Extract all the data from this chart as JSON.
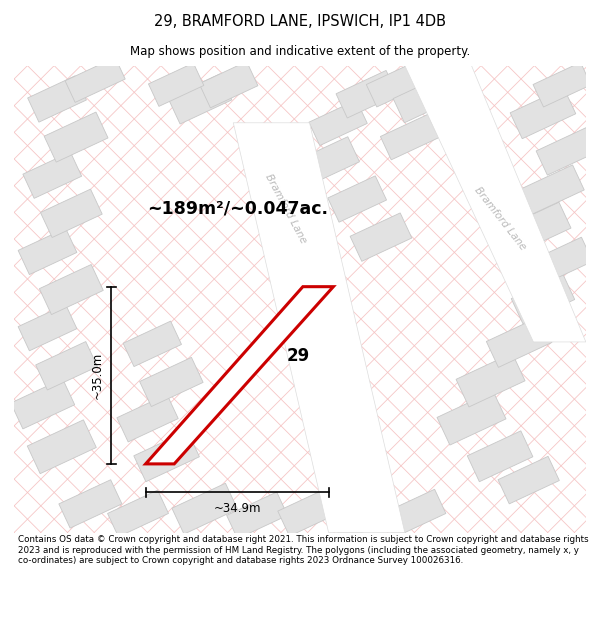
{
  "title": "29, BRAMFORD LANE, IPSWICH, IP1 4DB",
  "subtitle": "Map shows position and indicative extent of the property.",
  "footer": "Contains OS data © Crown copyright and database right 2021. This information is subject to Crown copyright and database rights 2023 and is reproduced with the permission of HM Land Registry. The polygons (including the associated geometry, namely x, y co-ordinates) are subject to Crown copyright and database rights 2023 Ordnance Survey 100026316.",
  "area_label": "~189m²/~0.047ac.",
  "plot_number": "29",
  "dim_height": "~35.0m",
  "dim_width": "~34.9m",
  "bg_color": "#ffffff",
  "map_bg": "#f7f7f7",
  "hatch_color": "#f5c0c0",
  "block_fill": "#e2e2e2",
  "block_edge": "#c8c8c8",
  "road_fill": "#ffffff",
  "road_label_color": "#bbbbbb",
  "prop_edge": "#cc0000",
  "prop_fill": "#ffffff"
}
